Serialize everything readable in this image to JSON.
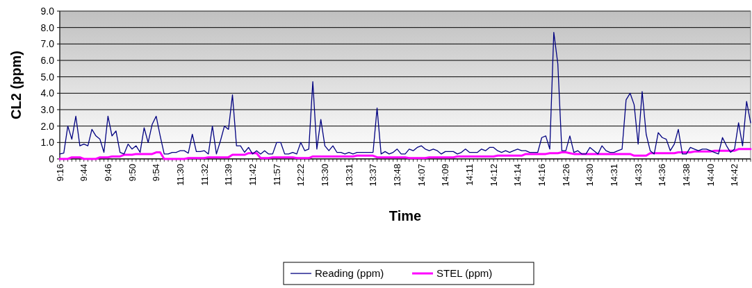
{
  "chart_data": {
    "type": "line",
    "xlabel": "Time",
    "ylabel": "CL2 (ppm)",
    "categories": [
      "9:16",
      null,
      null,
      null,
      null,
      null,
      "9:44",
      null,
      null,
      null,
      null,
      null,
      "9:46",
      null,
      null,
      null,
      null,
      null,
      "9:50",
      null,
      null,
      null,
      null,
      null,
      "9:54",
      null,
      null,
      null,
      null,
      null,
      "11:30",
      null,
      null,
      null,
      null,
      null,
      "11:32",
      null,
      null,
      null,
      null,
      null,
      "11:39",
      null,
      null,
      null,
      null,
      null,
      "11:42",
      null,
      null,
      null,
      null,
      null,
      "11:57",
      null,
      null,
      null,
      null,
      null,
      "12:22",
      null,
      null,
      null,
      null,
      null,
      "13:30",
      null,
      null,
      null,
      null,
      null,
      "13:31",
      null,
      null,
      null,
      null,
      null,
      "13:37",
      null,
      null,
      null,
      null,
      null,
      "13:48",
      null,
      null,
      null,
      null,
      null,
      "14:07",
      null,
      null,
      null,
      null,
      null,
      "14:09",
      null,
      null,
      null,
      null,
      null,
      "14:11",
      null,
      null,
      null,
      null,
      null,
      "14:12",
      null,
      null,
      null,
      null,
      null,
      "14:14",
      null,
      null,
      null,
      null,
      null,
      "14:16",
      null,
      null,
      null,
      null,
      null,
      "14:26",
      null,
      null,
      null,
      null,
      null,
      "14:30",
      null,
      null,
      null,
      null,
      null,
      "14:31",
      null,
      null,
      null,
      null,
      null,
      "14:33",
      null,
      null,
      null,
      null,
      null,
      "14:36",
      null,
      null,
      null,
      null,
      null,
      "14:38",
      null,
      null,
      null,
      null,
      null,
      "14:40",
      null,
      null,
      null,
      null,
      null,
      "14:42",
      null,
      null,
      null,
      null
    ],
    "series": [
      {
        "name": "Reading (ppm)",
        "color": "#000080",
        "values": [
          0.3,
          0.35,
          2.0,
          1.2,
          2.6,
          0.8,
          0.9,
          0.8,
          1.8,
          1.4,
          1.2,
          0.4,
          2.6,
          1.4,
          1.7,
          0.4,
          0.3,
          0.9,
          0.6,
          0.8,
          0.4,
          1.9,
          1.0,
          2.1,
          2.6,
          1.4,
          0.3,
          0.3,
          0.4,
          0.4,
          0.5,
          0.5,
          0.35,
          1.5,
          0.45,
          0.45,
          0.5,
          0.3,
          2.0,
          0.3,
          1.1,
          2.0,
          1.8,
          3.9,
          0.8,
          0.8,
          0.4,
          0.7,
          0.3,
          0.5,
          0.3,
          0.5,
          0.3,
          0.3,
          1.0,
          1.0,
          0.3,
          0.3,
          0.4,
          0.3,
          1.0,
          0.5,
          0.6,
          4.7,
          0.6,
          2.4,
          0.8,
          0.5,
          0.8,
          0.4,
          0.4,
          0.3,
          0.4,
          0.3,
          0.4,
          0.4,
          0.4,
          0.4,
          0.4,
          3.1,
          0.3,
          0.45,
          0.3,
          0.4,
          0.6,
          0.3,
          0.3,
          0.6,
          0.5,
          0.7,
          0.8,
          0.6,
          0.5,
          0.6,
          0.5,
          0.3,
          0.45,
          0.45,
          0.45,
          0.3,
          0.4,
          0.6,
          0.4,
          0.4,
          0.4,
          0.6,
          0.5,
          0.7,
          0.7,
          0.5,
          0.4,
          0.5,
          0.4,
          0.5,
          0.6,
          0.5,
          0.5,
          0.4,
          0.4,
          0.4,
          1.3,
          1.4,
          0.6,
          7.7,
          5.8,
          0.5,
          0.5,
          1.4,
          0.4,
          0.5,
          0.3,
          0.3,
          0.7,
          0.5,
          0.3,
          0.8,
          0.5,
          0.4,
          0.4,
          0.5,
          0.6,
          3.6,
          4.0,
          3.3,
          0.9,
          4.1,
          1.5,
          0.5,
          0.3,
          1.6,
          1.3,
          1.2,
          0.5,
          0.9,
          1.8,
          0.3,
          0.3,
          0.7,
          0.6,
          0.5,
          0.6,
          0.6,
          0.5,
          0.4,
          0.3,
          1.3,
          0.8,
          0.4,
          0.6,
          2.2,
          0.8,
          3.5,
          2.2
        ]
      },
      {
        "name": "STEL (ppm)",
        "color": "#ff00ff",
        "values": [
          0,
          0,
          0,
          0.1,
          0.1,
          0.1,
          0,
          0,
          0,
          0,
          0.1,
          0.1,
          0.1,
          0.15,
          0.15,
          0.15,
          0.25,
          0.25,
          0.25,
          0.3,
          0.3,
          0.3,
          0.3,
          0.3,
          0.4,
          0.4,
          0,
          0,
          0,
          0,
          0,
          0,
          0.05,
          0.05,
          0.05,
          0.05,
          0.05,
          0.1,
          0.1,
          0.1,
          0.1,
          0.1,
          0.1,
          0.25,
          0.25,
          0.25,
          0.25,
          0.35,
          0.35,
          0.35,
          0.05,
          0.05,
          0.05,
          0.1,
          0.1,
          0.1,
          0.1,
          0.1,
          0.1,
          0.05,
          0.05,
          0.05,
          0.05,
          0.15,
          0.15,
          0.15,
          0.15,
          0.15,
          0.15,
          0.15,
          0.15,
          0.15,
          0.15,
          0.15,
          0.2,
          0.2,
          0.2,
          0.2,
          0.2,
          0.1,
          0.1,
          0.1,
          0.1,
          0.1,
          0.1,
          0.1,
          0.1,
          0.05,
          0.05,
          0.05,
          0.05,
          0.05,
          0.1,
          0.1,
          0.1,
          0.1,
          0.1,
          0.1,
          0.1,
          0.15,
          0.15,
          0.15,
          0.15,
          0.15,
          0.15,
          0.15,
          0.15,
          0.15,
          0.15,
          0.2,
          0.2,
          0.2,
          0.2,
          0.2,
          0.2,
          0.2,
          0.3,
          0.3,
          0.3,
          0.3,
          0.3,
          0.3,
          0.35,
          0.35,
          0.35,
          0.4,
          0.4,
          0.35,
          0.3,
          0.3,
          0.3,
          0.3,
          0.3,
          0.3,
          0.3,
          0.3,
          0.3,
          0.3,
          0.3,
          0.3,
          0.3,
          0.3,
          0.3,
          0.2,
          0.2,
          0.2,
          0.2,
          0.35,
          0.35,
          0.35,
          0.35,
          0.35,
          0.35,
          0.35,
          0.4,
          0.4,
          0.4,
          0.4,
          0.45,
          0.45,
          0.45,
          0.45,
          0.45,
          0.5,
          0.5,
          0.5,
          0.5,
          0.5,
          0.5,
          0.6,
          0.6,
          0.6,
          0.6
        ]
      }
    ],
    "ylim": [
      0,
      9
    ],
    "yticks": [
      0,
      {
        "value": 1,
        "label": "1.0"
      },
      {
        "value": 2,
        "label": "2.0"
      },
      {
        "value": 3,
        "label": "3.0"
      },
      {
        "value": 4,
        "label": "4.0"
      },
      {
        "value": 5,
        "label": "5.0"
      },
      {
        "value": 6,
        "label": "6.0"
      },
      {
        "value": 7,
        "label": "7.0"
      },
      {
        "value": 8,
        "label": "8.0"
      },
      {
        "value": 9,
        "label": "9.0"
      }
    ],
    "grid": "y",
    "legend": "bottom",
    "marker": "none",
    "line_style": "solid"
  }
}
